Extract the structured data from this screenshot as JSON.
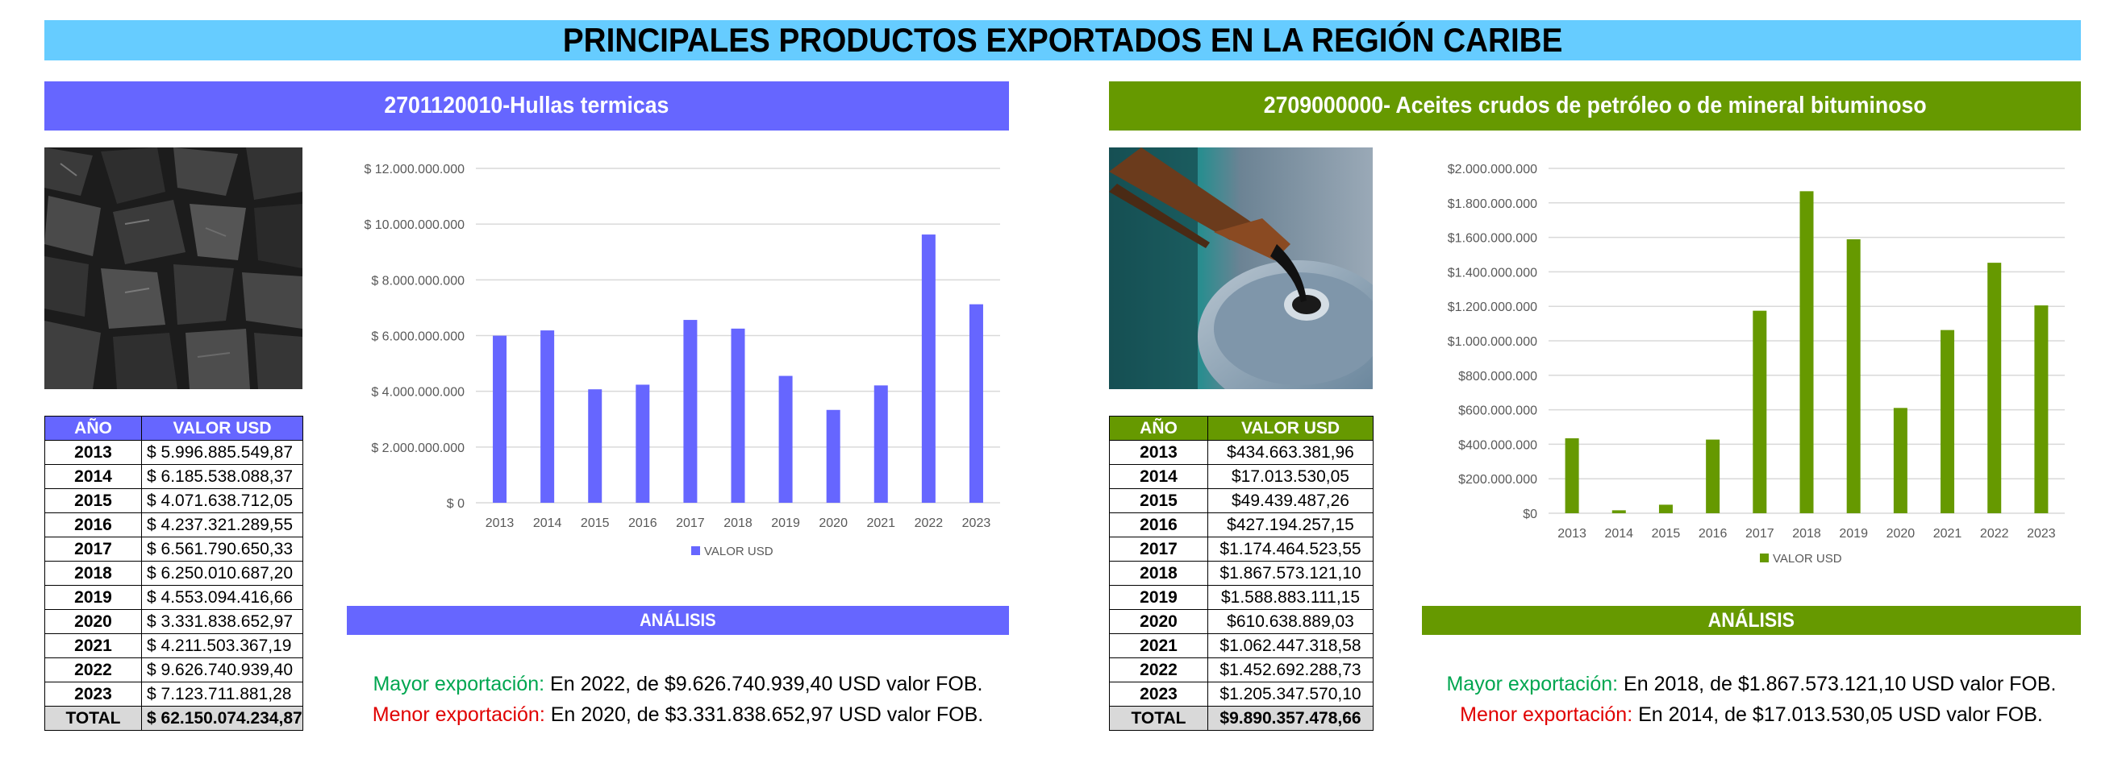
{
  "title": "PRINCIPALES PRODUCTOS EXPORTADOS EN LA REGIÓN CARIBE",
  "colors": {
    "title_bg": "#66ccff",
    "left_accent": "#6666ff",
    "right_accent": "#669900"
  },
  "left": {
    "header": "2701120010-Hullas termicas",
    "photo": "coal-photo",
    "table": {
      "col_year": "AÑO",
      "col_value": "VALOR USD",
      "rows": [
        {
          "year": "2013",
          "value": "$ 5.996.885.549,87"
        },
        {
          "year": "2014",
          "value": "$ 6.185.538.088,37"
        },
        {
          "year": "2015",
          "value": "$ 4.071.638.712,05"
        },
        {
          "year": "2016",
          "value": "$ 4.237.321.289,55"
        },
        {
          "year": "2017",
          "value": "$ 6.561.790.650,33"
        },
        {
          "year": "2018",
          "value": "$ 6.250.010.687,20"
        },
        {
          "year": "2019",
          "value": "$ 4.553.094.416,66"
        },
        {
          "year": "2020",
          "value": "$ 3.331.838.652,97"
        },
        {
          "year": "2021",
          "value": "$ 4.211.503.367,19"
        },
        {
          "year": "2022",
          "value": "$ 9.626.740.939,40"
        },
        {
          "year": "2023",
          "value": "$ 7.123.711.881,28"
        }
      ],
      "total_label": "TOTAL",
      "total_value": "$ 62.150.074.234,87"
    },
    "analysis_title": "ANÁLISIS",
    "max_label": "Mayor exportación:",
    "max_text": " En 2022, de $9.626.740.939,40 USD valor FOB.",
    "min_label": "Menor exportación:",
    "min_text": " En 2020, de $3.331.838.652,97 USD valor FOB."
  },
  "right": {
    "header": "2709000000- Aceites crudos de petróleo o de mineral bituminoso",
    "photo": "oil-barrel-photo",
    "table": {
      "col_year": "AÑO",
      "col_value": "VALOR USD",
      "rows": [
        {
          "year": "2013",
          "value": "$434.663.381,96"
        },
        {
          "year": "2014",
          "value": "$17.013.530,05"
        },
        {
          "year": "2015",
          "value": "$49.439.487,26"
        },
        {
          "year": "2016",
          "value": "$427.194.257,15"
        },
        {
          "year": "2017",
          "value": "$1.174.464.523,55"
        },
        {
          "year": "2018",
          "value": "$1.867.573.121,10"
        },
        {
          "year": "2019",
          "value": "$1.588.883.111,15"
        },
        {
          "year": "2020",
          "value": "$610.638.889,03"
        },
        {
          "year": "2021",
          "value": "$1.062.447.318,58"
        },
        {
          "year": "2022",
          "value": "$1.452.692.288,73"
        },
        {
          "year": "2023",
          "value": "$1.205.347.570,10"
        }
      ],
      "total_label": "TOTAL",
      "total_value": "$9.890.357.478,66"
    },
    "analysis_title": "ANÁLISIS",
    "max_label": "Mayor exportación:",
    "max_text": " En 2018, de $1.867.573.121,10 USD valor FOB.",
    "min_label": "Menor exportación:",
    "min_text": " En 2014, de $17.013.530,05 USD valor FOB."
  },
  "chart_data": [
    {
      "type": "bar",
      "categories": [
        "2013",
        "2014",
        "2015",
        "2016",
        "2017",
        "2018",
        "2019",
        "2020",
        "2021",
        "2022",
        "2023"
      ],
      "series": [
        {
          "name": "VALOR USD",
          "values": [
            5996885549.87,
            6185538088.37,
            4071638712.05,
            4237321289.55,
            6561790650.33,
            6250010687.2,
            4553094416.66,
            3331838652.97,
            4211503367.19,
            9626740939.4,
            7123711881.28
          ]
        }
      ],
      "ylim": [
        0,
        12000000000
      ],
      "yticks": [
        "$ 0",
        "$ 2.000.000.000",
        "$ 4.000.000.000",
        "$ 6.000.000.000",
        "$ 8.000.000.000",
        "$ 10.000.000.000",
        "$ 12.000.000.000"
      ],
      "color": "#6666ff",
      "legend": "bottom",
      "grid": true
    },
    {
      "type": "bar",
      "categories": [
        "2013",
        "2014",
        "2015",
        "2016",
        "2017",
        "2018",
        "2019",
        "2020",
        "2021",
        "2022",
        "2023"
      ],
      "series": [
        {
          "name": "VALOR USD",
          "values": [
            434663381.96,
            17013530.05,
            49439487.26,
            427194257.15,
            1174464523.55,
            1867573121.1,
            1588883111.15,
            610638889.03,
            1062447318.58,
            1452692288.73,
            1205347570.1
          ]
        }
      ],
      "ylim": [
        0,
        2000000000
      ],
      "yticks": [
        "$0",
        "$200.000.000",
        "$400.000.000",
        "$600.000.000",
        "$800.000.000",
        "$1.000.000.000",
        "$1.200.000.000",
        "$1.400.000.000",
        "$1.600.000.000",
        "$1.800.000.000",
        "$2.000.000.000"
      ],
      "color": "#669900",
      "legend": "bottom",
      "grid": true
    }
  ]
}
